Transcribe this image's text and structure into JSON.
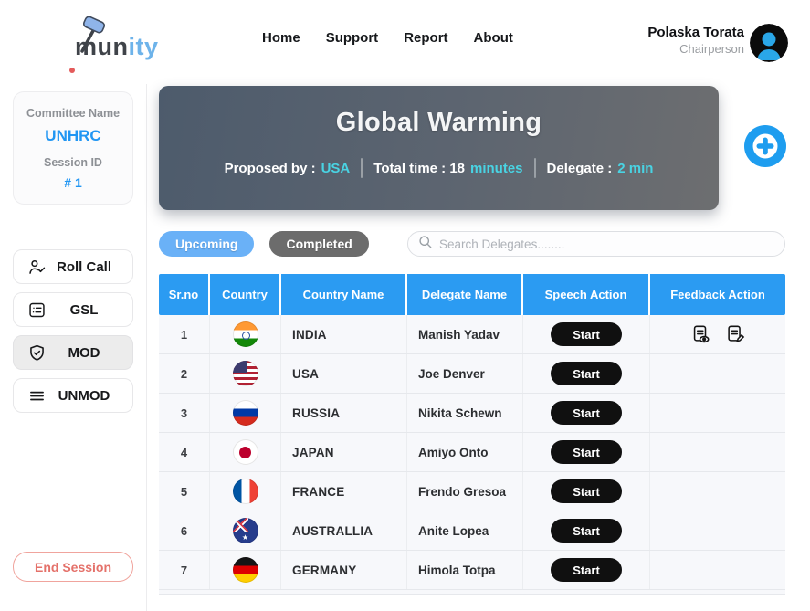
{
  "colors": {
    "table_header_blue": "#2b9bf2",
    "brand_blue": "#2196F3",
    "logo_accent_blue": "#6db3ea",
    "tab_active_blue": "#6ab1f7",
    "tab_inactive_gray": "#6c6c6c",
    "topic_gradient_left": "#4d5b6c",
    "topic_gradient_right": "#6d6e70",
    "cyan_highlight": "#49d3e3",
    "danger_red": "#e4716a",
    "start_button_black": "#101010",
    "fab_blue": "#1e9def"
  },
  "nav": {
    "logo": {
      "icon": "gavel-icon",
      "text_dark": "mun",
      "text_accent": "ity"
    },
    "links": [
      {
        "label": "Home"
      },
      {
        "label": "Support"
      },
      {
        "label": "Report"
      },
      {
        "label": "About"
      }
    ],
    "user": {
      "name": "Polaska Torata",
      "role": "Chairperson",
      "avatar_icon": "person-avatar-icon"
    }
  },
  "sidebar": {
    "committee_label": "Committee Name",
    "committee_name": "UNHRC",
    "session_label": "Session ID",
    "session_value": "# 1",
    "actions": [
      {
        "label": "Roll Call",
        "icon": "person-check-icon",
        "active": false
      },
      {
        "label": "GSL",
        "icon": "list-card-icon",
        "active": false
      },
      {
        "label": "MOD",
        "icon": "shield-check-icon",
        "active": true
      },
      {
        "label": "UNMOD",
        "icon": "menu-lines-icon",
        "active": false
      }
    ],
    "end_session_label": "End Session"
  },
  "topic": {
    "title": "Global Warming",
    "proposed_by_label": "Proposed by :",
    "proposed_by_value": "USA",
    "total_time_label": "Total time : 18",
    "total_time_unit": "minutes",
    "delegate_label": "Delegate :",
    "delegate_value": "2 min"
  },
  "fab": {
    "icon": "plus-icon"
  },
  "tabs": [
    {
      "label": "Upcoming",
      "active": true
    },
    {
      "label": "Completed",
      "active": false
    }
  ],
  "search": {
    "icon": "search-icon",
    "placeholder": "Search Delegates........"
  },
  "table": {
    "headers": [
      "Sr.no",
      "Country",
      "Country Name",
      "Delegate Name",
      "Speech Action",
      "Feedback Action"
    ],
    "rows": [
      {
        "sr": "1",
        "flag": "india",
        "country_name": "INDIA",
        "delegate_name": "Manish Yadav",
        "action_label": "Start",
        "feedback_icons": [
          "view-feedback-icon",
          "edit-feedback-icon"
        ]
      },
      {
        "sr": "2",
        "flag": "usa",
        "country_name": "USA",
        "delegate_name": "Joe Denver",
        "action_label": "Start",
        "feedback_icons": []
      },
      {
        "sr": "3",
        "flag": "russia",
        "country_name": "RUSSIA",
        "delegate_name": "Nikita Schewn",
        "action_label": "Start",
        "feedback_icons": []
      },
      {
        "sr": "4",
        "flag": "japan",
        "country_name": "JAPAN",
        "delegate_name": "Amiyo Onto",
        "action_label": "Start",
        "feedback_icons": []
      },
      {
        "sr": "5",
        "flag": "france",
        "country_name": "FRANCE",
        "delegate_name": "Frendo Gresoa",
        "action_label": "Start",
        "feedback_icons": []
      },
      {
        "sr": "6",
        "flag": "australia",
        "country_name": "AUSTRALLIA",
        "delegate_name": "Anite Lopea",
        "action_label": "Start",
        "feedback_icons": []
      },
      {
        "sr": "7",
        "flag": "germany",
        "country_name": "GERMANY",
        "delegate_name": "Himola Totpa",
        "action_label": "Start",
        "feedback_icons": []
      }
    ]
  }
}
